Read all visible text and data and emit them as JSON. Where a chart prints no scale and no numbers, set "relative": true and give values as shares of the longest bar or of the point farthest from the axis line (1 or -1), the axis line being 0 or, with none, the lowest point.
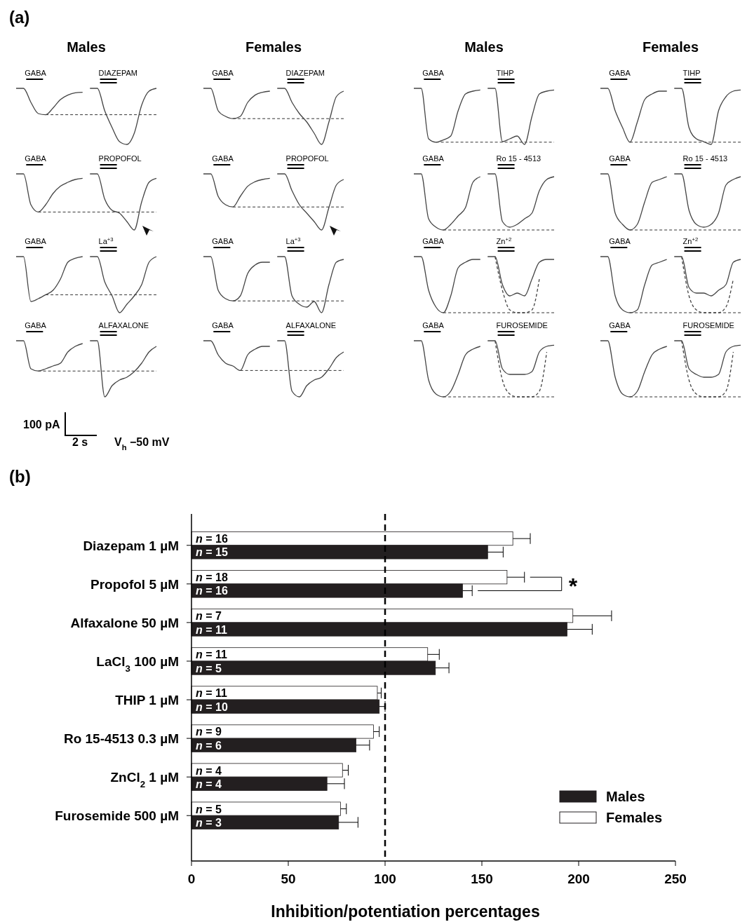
{
  "chart_data": [
    {
      "type": "line",
      "relative": true,
      "title": "Males",
      "annotations": [
        "(a)"
      ],
      "categories": [
        null,
        null,
        null,
        null,
        null,
        null,
        null,
        null,
        null,
        null,
        null,
        null,
        null,
        null,
        null,
        null,
        null,
        null,
        null,
        null
      ],
      "ref_lines": [
        {
          "axis": "y",
          "value": 0.53,
          "line_style": "dashed"
        }
      ],
      "series": [
        {
          "name": "GABA",
          "color": "#444444",
          "values": [
            1,
            1,
            0.75,
            0.55,
            0.53,
            0.65,
            0.8,
            0.88,
            0.92,
            0.93,
            null,
            null,
            null,
            null,
            null,
            null,
            null,
            null,
            null,
            null
          ]
        },
        {
          "name": "DIAZEPAM",
          "color": "#444444",
          "values": [
            null,
            null,
            null,
            null,
            null,
            null,
            null,
            null,
            null,
            null,
            1,
            1,
            0.6,
            0.3,
            0.05,
            0,
            0.2,
            0.7,
            0.95,
            1
          ]
        }
      ]
    },
    {
      "type": "line",
      "relative": true,
      "title": "Females",
      "categories": [
        null,
        null,
        null,
        null,
        null,
        null,
        null,
        null,
        null,
        null,
        null,
        null,
        null,
        null,
        null,
        null,
        null,
        null,
        null,
        null
      ],
      "ref_lines": [
        {
          "axis": "y",
          "value": 0.46,
          "line_style": "dashed"
        }
      ],
      "series": [
        {
          "name": "GABA",
          "color": "#444444",
          "values": [
            1,
            1,
            0.6,
            0.5,
            0.46,
            0.5,
            0.75,
            0.88,
            0.93,
            0.95,
            null,
            null,
            null,
            null,
            null,
            null,
            null,
            null,
            null,
            null
          ]
        },
        {
          "name": "DIAZEPAM",
          "color": "#444444",
          "values": [
            null,
            null,
            null,
            null,
            null,
            null,
            null,
            null,
            null,
            null,
            1,
            1,
            0.75,
            0.55,
            0.4,
            0.2,
            0,
            0.4,
            0.85,
            0.95
          ]
        }
      ]
    },
    {
      "type": "line",
      "relative": true,
      "title": "Males",
      "categories": [
        null,
        null,
        null,
        null,
        null,
        null,
        null,
        null,
        null,
        null,
        null,
        null,
        null,
        null,
        null,
        null,
        null,
        null,
        null,
        null
      ],
      "ref_lines": [
        {
          "axis": "y",
          "value": 0.04,
          "line_style": "dashed"
        }
      ],
      "series": [
        {
          "name": "GABA",
          "color": "#444444",
          "values": [
            1,
            1,
            0.1,
            0.04,
            0.08,
            0.15,
            0.6,
            0.9,
            0.95,
            0.97,
            null,
            null,
            null,
            null,
            null,
            null,
            null,
            null,
            null,
            null
          ]
        },
        {
          "name": "TIHP",
          "color": "#444444",
          "values": [
            null,
            null,
            null,
            null,
            null,
            null,
            null,
            null,
            null,
            null,
            1,
            1,
            0.05,
            0.1,
            0.15,
            0,
            0.5,
            0.9,
            0.95,
            0.97
          ]
        }
      ]
    },
    {
      "type": "line",
      "relative": true,
      "title": "Females",
      "categories": [
        null,
        null,
        null,
        null,
        null,
        null,
        null,
        null,
        null,
        null,
        null,
        null,
        null,
        null,
        null,
        null,
        null,
        null,
        null,
        null
      ],
      "ref_lines": [
        {
          "axis": "y",
          "value": 0.04,
          "line_style": "dashed"
        }
      ],
      "series": [
        {
          "name": "GABA",
          "color": "#444444",
          "values": [
            1,
            1,
            0.6,
            0.3,
            0.04,
            0.4,
            0.8,
            0.9,
            0.95,
            0.95,
            null,
            null,
            null,
            null,
            null,
            null,
            null,
            null,
            null,
            null
          ]
        },
        {
          "name": "TIHP",
          "color": "#444444",
          "values": [
            null,
            null,
            null,
            null,
            null,
            null,
            null,
            null,
            null,
            null,
            1,
            1,
            0.3,
            0.1,
            0.05,
            0,
            0.6,
            0.85,
            0.95,
            0.97
          ]
        }
      ]
    },
    {
      "type": "line",
      "relative": true,
      "categories": [
        null,
        null,
        null,
        null,
        null,
        null,
        null,
        null,
        null,
        null,
        null,
        null,
        null,
        null,
        null,
        null,
        null,
        null,
        null,
        null
      ],
      "ref_lines": [
        {
          "axis": "y",
          "value": 0.32,
          "line_style": "dashed"
        }
      ],
      "series": [
        {
          "name": "GABA",
          "color": "#444444",
          "values": [
            1,
            1,
            0.45,
            0.32,
            0.45,
            0.65,
            0.78,
            0.85,
            0.9,
            0.92,
            null,
            null,
            null,
            null,
            null,
            null,
            null,
            null,
            null,
            null
          ]
        },
        {
          "name": "PROPOFOL",
          "color": "#444444",
          "values": [
            null,
            null,
            null,
            null,
            null,
            null,
            null,
            null,
            null,
            null,
            1,
            1,
            0.55,
            0.35,
            0.3,
            0.15,
            0,
            0.5,
            0.85,
            0.92
          ]
        }
      ]
    },
    {
      "type": "line",
      "relative": true,
      "categories": [
        null,
        null,
        null,
        null,
        null,
        null,
        null,
        null,
        null,
        null,
        null,
        null,
        null,
        null,
        null,
        null,
        null,
        null,
        null,
        null
      ],
      "ref_lines": [
        {
          "axis": "y",
          "value": 0.41,
          "line_style": "dashed"
        }
      ],
      "series": [
        {
          "name": "GABA",
          "color": "#444444",
          "values": [
            1,
            1,
            0.6,
            0.45,
            0.41,
            0.6,
            0.78,
            0.86,
            0.9,
            0.92,
            null,
            null,
            null,
            null,
            null,
            null,
            null,
            null,
            null,
            null
          ]
        },
        {
          "name": "PROPOFOL",
          "color": "#444444",
          "values": [
            null,
            null,
            null,
            null,
            null,
            null,
            null,
            null,
            null,
            null,
            1,
            1,
            0.7,
            0.45,
            0.3,
            0.15,
            0,
            0.4,
            0.8,
            0.9
          ]
        }
      ]
    },
    {
      "type": "line",
      "relative": true,
      "categories": [
        null,
        null,
        null,
        null,
        null,
        null,
        null,
        null,
        null,
        null,
        null,
        null,
        null,
        null,
        null,
        null,
        null,
        null,
        null,
        null
      ],
      "ref_lines": [
        {
          "axis": "y",
          "value": 0,
          "line_style": "dashed"
        }
      ],
      "series": [
        {
          "name": "GABA",
          "color": "#444444",
          "values": [
            1,
            1,
            0.2,
            0.05,
            0,
            0.1,
            0.25,
            0.4,
            0.85,
            0.95,
            null,
            null,
            null,
            null,
            null,
            null,
            null,
            null,
            null,
            null
          ]
        },
        {
          "name": "Ro 15 - 4513",
          "color": "#444444",
          "values": [
            null,
            null,
            null,
            null,
            null,
            null,
            null,
            null,
            null,
            null,
            1,
            1,
            0.15,
            0.05,
            0.1,
            0.2,
            0.3,
            0.7,
            0.9,
            0.95
          ]
        }
      ]
    },
    {
      "type": "line",
      "relative": true,
      "categories": [
        null,
        null,
        null,
        null,
        null,
        null,
        null,
        null,
        null,
        null,
        null,
        null,
        null,
        null,
        null,
        null,
        null,
        null,
        null,
        null
      ],
      "ref_lines": [
        {
          "axis": "y",
          "value": 0,
          "line_style": "dashed"
        }
      ],
      "series": [
        {
          "name": "GABA",
          "color": "#444444",
          "values": [
            1,
            1,
            0.3,
            0.1,
            0,
            0.1,
            0.5,
            0.85,
            0.9,
            0.95,
            null,
            null,
            null,
            null,
            null,
            null,
            null,
            null,
            null,
            null
          ]
        },
        {
          "name": "Ro 15 - 4513",
          "color": "#444444",
          "values": [
            null,
            null,
            null,
            null,
            null,
            null,
            null,
            null,
            null,
            null,
            1,
            1,
            0.35,
            0.1,
            0.05,
            0.1,
            0.3,
            0.8,
            0.9,
            0.95
          ]
        }
      ]
    },
    {
      "type": "line",
      "relative": true,
      "categories": [
        null,
        null,
        null,
        null,
        null,
        null,
        null,
        null,
        null,
        null,
        null,
        null,
        null,
        null,
        null,
        null,
        null,
        null,
        null,
        null
      ],
      "ref_lines": [
        {
          "axis": "y",
          "value": 0.32,
          "line_style": "dashed"
        }
      ],
      "series": [
        {
          "name": "GABA",
          "color": "#444444",
          "values": [
            1,
            1,
            0.2,
            0.25,
            0.32,
            0.4,
            0.6,
            0.9,
            0.97,
            1,
            null,
            null,
            null,
            null,
            null,
            null,
            null,
            null,
            null,
            null
          ]
        },
        {
          "name": "La$^{+3}$",
          "color": "#444444",
          "values": [
            null,
            null,
            null,
            null,
            null,
            null,
            null,
            null,
            null,
            null,
            1,
            1,
            0.55,
            0.3,
            0,
            0.15,
            0.3,
            0.5,
            0.9,
            1
          ]
        }
      ]
    },
    {
      "type": "line",
      "relative": true,
      "categories": [
        null,
        null,
        null,
        null,
        null,
        null,
        null,
        null,
        null,
        null,
        null,
        null,
        null,
        null,
        null,
        null,
        null,
        null,
        null,
        null
      ],
      "ref_lines": [
        {
          "axis": "y",
          "value": 0.21,
          "line_style": "dashed"
        }
      ],
      "series": [
        {
          "name": "GABA",
          "color": "#444444",
          "values": [
            1,
            1,
            0.4,
            0.25,
            0.21,
            0.3,
            0.7,
            0.85,
            0.9,
            0.9,
            null,
            null,
            null,
            null,
            null,
            null,
            null,
            null,
            null,
            null
          ]
        },
        {
          "name": "La$^{+3}$",
          "color": "#444444",
          "values": [
            null,
            null,
            null,
            null,
            null,
            null,
            null,
            null,
            null,
            null,
            1,
            1,
            0.3,
            0.15,
            0.1,
            0.2,
            0,
            0.5,
            0.9,
            0.95
          ]
        }
      ]
    },
    {
      "type": "line",
      "relative": true,
      "categories": [
        null,
        null,
        null,
        null,
        null,
        null,
        null,
        null,
        null,
        null,
        null,
        null,
        null,
        null,
        null,
        null,
        null,
        null,
        null,
        null
      ],
      "ref_lines": [
        {
          "axis": "y",
          "value": 0,
          "line_style": "dashed"
        }
      ],
      "series": [
        {
          "name": "GABA",
          "color": "#444444",
          "values": [
            1,
            1,
            0.4,
            0.1,
            0,
            0.3,
            0.8,
            0.9,
            0.95,
            0.95,
            null,
            null,
            null,
            null,
            null,
            null,
            null,
            null,
            null,
            null
          ]
        },
        {
          "name": "Zn$^{+2}$",
          "color": "#444444",
          "values": [
            null,
            null,
            null,
            null,
            null,
            null,
            null,
            null,
            null,
            null,
            1,
            1,
            0.5,
            0.3,
            0.35,
            0.3,
            0.6,
            0.9,
            0.95,
            0.95
          ]
        },
        {
          "color": "#444444",
          "line_style": "dashed",
          "values": [
            null,
            null,
            null,
            null,
            null,
            null,
            null,
            null,
            null,
            null,
            null,
            1,
            0.4,
            0.05,
            0,
            0,
            0.05,
            0.6,
            null,
            null
          ]
        }
      ]
    },
    {
      "type": "line",
      "relative": true,
      "categories": [
        null,
        null,
        null,
        null,
        null,
        null,
        null,
        null,
        null,
        null,
        null,
        null,
        null,
        null,
        null,
        null,
        null,
        null,
        null,
        null
      ],
      "ref_lines": [
        {
          "axis": "y",
          "value": 0,
          "line_style": "dashed"
        }
      ],
      "series": [
        {
          "name": "GABA",
          "color": "#444444",
          "values": [
            1,
            1,
            0.3,
            0.05,
            0,
            0.05,
            0.5,
            0.85,
            0.9,
            0.95,
            null,
            null,
            null,
            null,
            null,
            null,
            null,
            null,
            null,
            null
          ]
        },
        {
          "name": "Zn$^{+2}$",
          "color": "#444444",
          "values": [
            null,
            null,
            null,
            null,
            null,
            null,
            null,
            null,
            null,
            null,
            1,
            1,
            0.45,
            0.35,
            0.35,
            0.3,
            0.4,
            0.5,
            0.9,
            0.95
          ]
        },
        {
          "color": "#444444",
          "line_style": "dashed",
          "values": [
            null,
            null,
            null,
            null,
            null,
            null,
            null,
            null,
            null,
            null,
            null,
            1,
            0.3,
            0.05,
            0,
            0,
            0,
            0.1,
            0.6,
            null
          ]
        }
      ]
    },
    {
      "type": "line",
      "relative": true,
      "annotations": [
        "100 pA",
        "2 s",
        "V$_{h}$ −50 mV"
      ],
      "categories": [
        null,
        null,
        null,
        null,
        null,
        null,
        null,
        null,
        null,
        null,
        null,
        null,
        null,
        null,
        null,
        null,
        null,
        null,
        null,
        null
      ],
      "ref_lines": [
        {
          "axis": "y",
          "value": 0.46,
          "line_style": "dashed"
        }
      ],
      "series": [
        {
          "name": "GABA",
          "color": "#444444",
          "values": [
            1,
            1,
            0.5,
            0.46,
            0.5,
            0.55,
            0.6,
            0.8,
            0.9,
            0.95,
            null,
            null,
            null,
            null,
            null,
            null,
            null,
            null,
            null,
            null
          ]
        },
        {
          "name": "ALFAXALONE",
          "color": "#444444",
          "values": [
            null,
            null,
            null,
            null,
            null,
            null,
            null,
            null,
            null,
            null,
            1,
            1,
            0,
            0.2,
            0.3,
            0.35,
            0.45,
            0.6,
            0.8,
            0.9
          ]
        }
      ]
    },
    {
      "type": "line",
      "relative": true,
      "categories": [
        null,
        null,
        null,
        null,
        null,
        null,
        null,
        null,
        null,
        null,
        null,
        null,
        null,
        null,
        null,
        null,
        null,
        null,
        null,
        null
      ],
      "ref_lines": [
        {
          "axis": "y",
          "value": 0.47,
          "line_style": "dashed"
        }
      ],
      "series": [
        {
          "name": "GABA",
          "color": "#444444",
          "values": [
            1,
            1,
            0.75,
            0.6,
            0.55,
            0.47,
            0.75,
            0.85,
            0.9,
            0.9,
            null,
            null,
            null,
            null,
            null,
            null,
            null,
            null,
            null,
            null
          ]
        },
        {
          "name": "ALFAXALONE",
          "color": "#444444",
          "values": [
            null,
            null,
            null,
            null,
            null,
            null,
            null,
            null,
            null,
            null,
            1,
            1,
            0.1,
            0,
            0.2,
            0.3,
            0.35,
            0.5,
            0.7,
            0.8
          ]
        }
      ]
    },
    {
      "type": "line",
      "relative": true,
      "categories": [
        null,
        null,
        null,
        null,
        null,
        null,
        null,
        null,
        null,
        null,
        null,
        null,
        null,
        null,
        null,
        null,
        null,
        null,
        null,
        null
      ],
      "ref_lines": [
        {
          "axis": "y",
          "value": 0,
          "line_style": "dashed"
        }
      ],
      "series": [
        {
          "name": "GABA",
          "color": "#444444",
          "values": [
            1,
            1,
            0.3,
            0.05,
            0,
            0.1,
            0.4,
            0.75,
            0.85,
            0.9,
            null,
            null,
            null,
            null,
            null,
            null,
            null,
            null,
            null,
            null
          ]
        },
        {
          "name": "FUROSEMIDE",
          "color": "#444444",
          "values": [
            null,
            null,
            null,
            null,
            null,
            null,
            null,
            null,
            null,
            null,
            1,
            1,
            0.5,
            0.4,
            0.4,
            0.4,
            0.45,
            0.8,
            0.9,
            0.92
          ]
        },
        {
          "color": "#444444",
          "line_style": "dashed",
          "values": [
            null,
            null,
            null,
            null,
            null,
            null,
            null,
            null,
            null,
            null,
            null,
            1,
            0.3,
            0.05,
            0,
            0,
            0,
            0.1,
            0.8,
            null
          ]
        }
      ]
    },
    {
      "type": "line",
      "relative": true,
      "categories": [
        null,
        null,
        null,
        null,
        null,
        null,
        null,
        null,
        null,
        null,
        null,
        null,
        null,
        null,
        null,
        null,
        null,
        null,
        null,
        null
      ],
      "ref_lines": [
        {
          "axis": "y",
          "value": 0,
          "line_style": "dashed"
        }
      ],
      "series": [
        {
          "name": "GABA",
          "color": "#444444",
          "values": [
            1,
            1,
            0.35,
            0.05,
            0,
            0.1,
            0.45,
            0.75,
            0.85,
            0.9,
            null,
            null,
            null,
            null,
            null,
            null,
            null,
            null,
            null,
            null
          ]
        },
        {
          "name": "FUROSEMIDE",
          "color": "#444444",
          "values": [
            null,
            null,
            null,
            null,
            null,
            null,
            null,
            null,
            null,
            null,
            1,
            1,
            0.5,
            0.4,
            0.35,
            0.35,
            0.4,
            0.8,
            0.9,
            0.92
          ]
        },
        {
          "color": "#444444",
          "line_style": "dashed",
          "values": [
            null,
            null,
            null,
            null,
            null,
            null,
            null,
            null,
            null,
            null,
            null,
            1,
            0.3,
            0.05,
            0,
            0,
            0,
            0.1,
            0.8,
            null
          ]
        }
      ]
    },
    {
      "type": "bar",
      "orientation": "horizontal",
      "annotations": [
        "(b)",
        "*",
        "n = 16",
        "n = 15",
        "n = 18",
        "n = 16",
        "n = 7",
        "n = 11",
        "n = 11",
        "n = 5",
        "n = 11",
        "n = 10",
        "n = 9",
        "n = 6",
        "n = 4",
        "n = 4",
        "n = 5",
        "n = 3"
      ],
      "xlabel": "Inhibition/potentiation percentages",
      "categories": [
        "Diazepam 1 µM",
        "Propofol 5 µM",
        "Alfaxalone 50 µM",
        "LaCl$_{3}$ 100 µM",
        "THIP 1 µM",
        "Ro 15-4513 0.3 µM",
        "ZnCl$_{2}$ 1 µM",
        "Furosemide 500 µM"
      ],
      "xlim": [
        0,
        250
      ],
      "xticks": [
        0,
        50,
        100,
        150,
        200,
        250
      ],
      "ref_lines": [
        {
          "axis": "x",
          "value": 100,
          "line_style": "dashed",
          "color": "#000000"
        }
      ],
      "legend": "bottom right",
      "grid": false,
      "series": [
        {
          "name": "Females",
          "color": "#ffffff",
          "values": [
            166,
            163,
            197,
            122,
            96,
            94,
            78,
            77
          ],
          "errors": [
            9,
            9,
            20,
            6,
            2,
            3,
            3,
            3
          ]
        },
        {
          "name": "Males",
          "color": "#231f20",
          "values": [
            153,
            140,
            194,
            126,
            97,
            85,
            70,
            76
          ],
          "errors": [
            8,
            5,
            13,
            7,
            3,
            7,
            9,
            10
          ]
        }
      ]
    }
  ]
}
